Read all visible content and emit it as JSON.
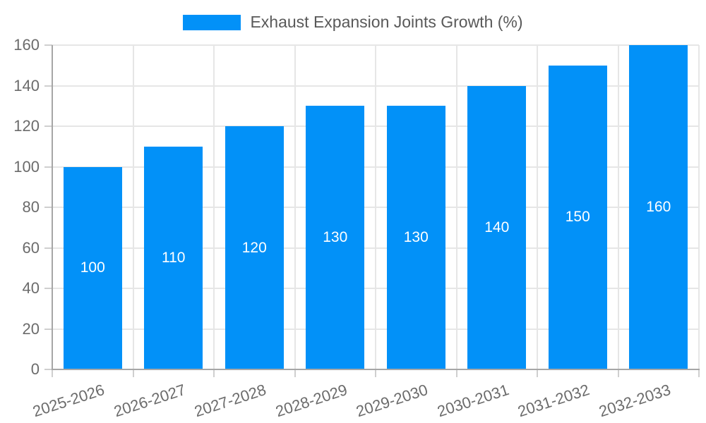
{
  "chart_data": {
    "type": "bar",
    "title": "Exhaust Expansion Joints Growth (%)",
    "categories": [
      "2025-2026",
      "2026-2027",
      "2027-2028",
      "2028-2029",
      "2029-2030",
      "2030-2031",
      "2031-2032",
      "2032-2033"
    ],
    "values": [
      100,
      110,
      120,
      130,
      130,
      140,
      150,
      160
    ],
    "xlabel": "",
    "ylabel": "",
    "ylim": [
      0,
      160
    ],
    "yticks": [
      0,
      20,
      40,
      60,
      80,
      100,
      120,
      140,
      160
    ],
    "grid": true,
    "legend_position": "top",
    "bar_labels_inside": true,
    "colors": {
      "bar": "#0291f8",
      "grid": "#e6e6e6",
      "tick": "#cfcfcf",
      "axis": "#a6a6a6",
      "axis_text": "#6b6b6b",
      "legend_text": "#595959",
      "bar_label_text": "#ffffff",
      "background": "#ffffff"
    }
  }
}
